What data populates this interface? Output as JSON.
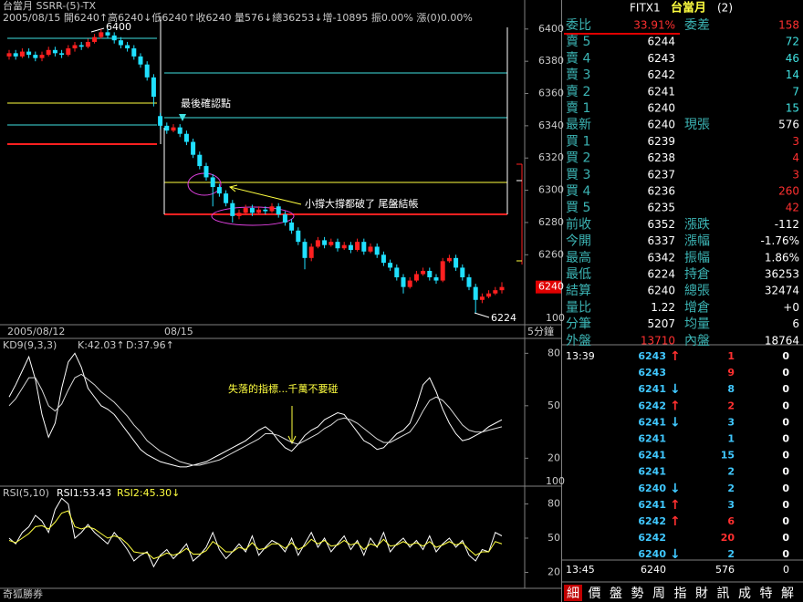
{
  "header": {
    "title": "台當月 SSRR-(5)-TX",
    "ohlc": "2005/08/15 開6240↑高6240↓低6240↑收6240 量576↓總36253↓增-10895 振0.00% 漲(0)0.00%"
  },
  "price_chart": {
    "type": "candlestick",
    "ylim": [
      6220,
      6418
    ],
    "yticks": [
      6400,
      6380,
      6360,
      6340,
      6320,
      6300,
      6280,
      6260
    ],
    "scale_label": "100",
    "last": 6240,
    "candles": [
      [
        6383,
        6387,
        6381,
        6385
      ],
      [
        6385,
        6387,
        6381,
        6383
      ],
      [
        6383,
        6388,
        6382,
        6386
      ],
      [
        6386,
        6388,
        6382,
        6384
      ],
      [
        6384,
        6386,
        6380,
        6382
      ],
      [
        6382,
        6386,
        6380,
        6384
      ],
      [
        6384,
        6389,
        6383,
        6387
      ],
      [
        6387,
        6389,
        6383,
        6385
      ],
      [
        6385,
        6387,
        6382,
        6384
      ],
      [
        6384,
        6390,
        6383,
        6388
      ],
      [
        6388,
        6392,
        6386,
        6390
      ],
      [
        6390,
        6392,
        6387,
        6389
      ],
      [
        6389,
        6394,
        6388,
        6392
      ],
      [
        6392,
        6397,
        6391,
        6395
      ],
      [
        6395,
        6400,
        6394,
        6398
      ],
      [
        6398,
        6400,
        6394,
        6396
      ],
      [
        6396,
        6398,
        6391,
        6393
      ],
      [
        6393,
        6395,
        6388,
        6390
      ],
      [
        6390,
        6392,
        6386,
        6388
      ],
      [
        6388,
        6390,
        6381,
        6383
      ],
      [
        6383,
        6385,
        6376,
        6378
      ],
      [
        6378,
        6380,
        6368,
        6370
      ],
      [
        6370,
        6372,
        6352,
        6358
      ],
      [
        6346,
        6348,
        6338,
        6340
      ],
      [
        6340,
        6342,
        6335,
        6337
      ],
      [
        6337,
        6341,
        6336,
        6339
      ],
      [
        6339,
        6341,
        6333,
        6335
      ],
      [
        6335,
        6337,
        6328,
        6330
      ],
      [
        6330,
        6332,
        6320,
        6322
      ],
      [
        6322,
        6324,
        6313,
        6315
      ],
      [
        6315,
        6317,
        6306,
        6308
      ],
      [
        6308,
        6310,
        6290,
        6302
      ],
      [
        6302,
        6304,
        6296,
        6298
      ],
      [
        6298,
        6300,
        6290,
        6292
      ],
      [
        6292,
        6294,
        6280,
        6284
      ],
      [
        6284,
        6288,
        6282,
        6286
      ],
      [
        6286,
        6291,
        6285,
        6289
      ],
      [
        6289,
        6291,
        6284,
        6286
      ],
      [
        6286,
        6290,
        6285,
        6288
      ],
      [
        6288,
        6290,
        6285,
        6287
      ],
      [
        6287,
        6292,
        6286,
        6290
      ],
      [
        6290,
        6292,
        6283,
        6285
      ],
      [
        6285,
        6287,
        6278,
        6280
      ],
      [
        6280,
        6282,
        6273,
        6275
      ],
      [
        6275,
        6277,
        6266,
        6268
      ],
      [
        6268,
        6270,
        6251,
        6258
      ],
      [
        6258,
        6267,
        6256,
        6265
      ],
      [
        6265,
        6271,
        6264,
        6269
      ],
      [
        6269,
        6271,
        6264,
        6266
      ],
      [
        6266,
        6270,
        6265,
        6268
      ],
      [
        6268,
        6270,
        6262,
        6264
      ],
      [
        6264,
        6268,
        6263,
        6266
      ],
      [
        6266,
        6268,
        6261,
        6263
      ],
      [
        6263,
        6270,
        6262,
        6268
      ],
      [
        6268,
        6270,
        6260,
        6262
      ],
      [
        6262,
        6267,
        6261,
        6265
      ],
      [
        6265,
        6267,
        6258,
        6260
      ],
      [
        6260,
        6262,
        6253,
        6255
      ],
      [
        6255,
        6257,
        6250,
        6252
      ],
      [
        6252,
        6254,
        6244,
        6246
      ],
      [
        6246,
        6248,
        6236,
        6240
      ],
      [
        6240,
        6246,
        6239,
        6244
      ],
      [
        6244,
        6250,
        6243,
        6248
      ],
      [
        6248,
        6252,
        6247,
        6250
      ],
      [
        6250,
        6252,
        6244,
        6246
      ],
      [
        6246,
        6248,
        6242,
        6244
      ],
      [
        6244,
        6258,
        6243,
        6256
      ],
      [
        6256,
        6260,
        6255,
        6258
      ],
      [
        6258,
        6260,
        6250,
        6252
      ],
      [
        6252,
        6254,
        6244,
        6246
      ],
      [
        6246,
        6248,
        6238,
        6240
      ],
      [
        6240,
        6242,
        6224,
        6232
      ],
      [
        6232,
        6236,
        6230,
        6234
      ],
      [
        6234,
        6238,
        6233,
        6236
      ],
      [
        6236,
        6240,
        6235,
        6238
      ],
      [
        6238,
        6243,
        6236,
        6240
      ]
    ],
    "annotations": {
      "high": "6400",
      "low": "6224",
      "confirm": "最後確認點",
      "broken": "小撐大撐都破了 尾盤結帳"
    }
  },
  "date_axis": {
    "left": "2005/08/12",
    "day": "08/15",
    "period": "5分鐘"
  },
  "kd_chart": {
    "type": "line",
    "label": "KD9(9,3,3)",
    "k_label": "K:42.03↑",
    "d_label": "D:37.96↑",
    "ylim": [
      4,
      88
    ],
    "yticks": [
      80,
      50,
      20
    ],
    "scale_label": "100",
    "annotation": "失落的指標...千萬不要碰",
    "series": [
      {
        "color": "#ffffff",
        "values": [
          55,
          62,
          70,
          78,
          65,
          45,
          32,
          40,
          60,
          75,
          80,
          72,
          60,
          55,
          50,
          48,
          45,
          40,
          35,
          30,
          25,
          22,
          20,
          18,
          17,
          16,
          15,
          15,
          16,
          17,
          18,
          20,
          22,
          24,
          26,
          28,
          30,
          33,
          36,
          38,
          35,
          30,
          26,
          24,
          28,
          33,
          36,
          38,
          42,
          44,
          46,
          45,
          40,
          35,
          30,
          28,
          25,
          26,
          30,
          34,
          36,
          40,
          50,
          62,
          66,
          58,
          48,
          40,
          34,
          30,
          31,
          33,
          35,
          38,
          40,
          42
        ]
      },
      {
        "color": "#d8d8d8",
        "values": [
          50,
          54,
          60,
          66,
          66,
          59,
          50,
          47,
          51,
          59,
          66,
          68,
          65,
          62,
          58,
          55,
          52,
          48,
          44,
          39,
          35,
          30,
          27,
          24,
          22,
          20,
          18,
          17,
          16,
          16,
          17,
          18,
          19,
          21,
          23,
          25,
          27,
          29,
          31,
          34,
          34,
          33,
          31,
          29,
          28,
          30,
          32,
          34,
          37,
          39,
          42,
          43,
          42,
          40,
          37,
          34,
          31,
          29,
          29,
          31,
          33,
          35,
          40,
          47,
          53,
          55,
          53,
          49,
          44,
          39,
          36,
          35,
          35,
          36,
          37,
          38
        ]
      }
    ]
  },
  "rsi_chart": {
    "type": "line",
    "label": "RSI(5,10)",
    "rsi1_label": "RSI1:53.43",
    "rsi2_label": "RSI2:45.30↓",
    "ylim": [
      6,
      94
    ],
    "yticks": [
      80,
      50,
      20
    ],
    "series": [
      {
        "color": "#ffffff",
        "values": [
          50,
          45,
          55,
          60,
          70,
          65,
          55,
          75,
          85,
          80,
          50,
          55,
          62,
          55,
          50,
          45,
          55,
          48,
          40,
          30,
          35,
          38,
          25,
          35,
          40,
          32,
          38,
          45,
          30,
          35,
          42,
          55,
          40,
          32,
          38,
          45,
          38,
          52,
          35,
          42,
          48,
          45,
          38,
          50,
          35,
          45,
          55,
          42,
          50,
          38,
          45,
          52,
          40,
          48,
          35,
          50,
          42,
          55,
          38,
          45,
          50,
          42,
          48,
          40,
          52,
          38,
          45,
          50,
          42,
          48,
          35,
          30,
          40,
          38,
          55,
          52
        ]
      },
      {
        "color": "#ffff40",
        "values": [
          48,
          46,
          50,
          54,
          60,
          61,
          58,
          64,
          72,
          74,
          60,
          58,
          60,
          58,
          54,
          50,
          52,
          50,
          45,
          38,
          37,
          37,
          32,
          34,
          37,
          35,
          37,
          41,
          36,
          36,
          39,
          47,
          43,
          38,
          38,
          42,
          40,
          46,
          40,
          41,
          45,
          45,
          41,
          46,
          40,
          43,
          49,
          45,
          48,
          43,
          44,
          48,
          44,
          46,
          40,
          45,
          43,
          49,
          43,
          44,
          47,
          44,
          46,
          43,
          47,
          42,
          44,
          47,
          44,
          46,
          40,
          35,
          38,
          38,
          47,
          45
        ]
      }
    ]
  },
  "quote": {
    "symbol": "FITX1",
    "name": "台當月",
    "count": "(2)",
    "rows": [
      [
        "委比",
        "33.91%",
        "委差",
        "158"
      ],
      [
        "賣 5",
        "6244",
        "72"
      ],
      [
        "賣 4",
        "6243",
        "46"
      ],
      [
        "賣 3",
        "6242",
        "14"
      ],
      [
        "賣 2",
        "6241",
        "7"
      ],
      [
        "賣 1",
        "6240",
        "15"
      ],
      [
        "最新",
        "6240",
        "現張",
        "576"
      ],
      [
        "買 1",
        "6239",
        "3"
      ],
      [
        "買 2",
        "6238",
        "4"
      ],
      [
        "買 3",
        "6237",
        "3"
      ],
      [
        "買 4",
        "6236",
        "260"
      ],
      [
        "買 5",
        "6235",
        "42"
      ],
      [
        "前收",
        "6352",
        "漲跌",
        "-112"
      ],
      [
        "今開",
        "6337",
        "漲幅",
        "-1.76%"
      ],
      [
        "最高",
        "6342",
        "振幅",
        "1.86%"
      ],
      [
        "最低",
        "6224",
        "持倉",
        "36253"
      ],
      [
        "結算",
        "6240",
        "總張",
        "32474"
      ],
      [
        "量比",
        "1.22",
        "增倉",
        "+0"
      ],
      [
        "分筆",
        "5207",
        "均量",
        "6"
      ],
      [
        "外盤",
        "13710",
        "內盤",
        "18764"
      ]
    ]
  },
  "ticks": {
    "rows": [
      {
        "time": "13:39",
        "price": "6243",
        "arrow": "↑",
        "volume": "1",
        "flag": "0",
        "color": "#ff3030"
      },
      {
        "price": "6243",
        "volume": "9",
        "flag": "0",
        "color": "#ff3030"
      },
      {
        "price": "6241",
        "arrow": "↓",
        "volume": "8",
        "flag": "0",
        "color": "#40c8ff"
      },
      {
        "price": "6242",
        "arrow": "↑",
        "volume": "2",
        "flag": "0",
        "color": "#ff3030"
      },
      {
        "price": "6241",
        "arrow": "↓",
        "volume": "3",
        "flag": "0",
        "color": "#40c8ff"
      },
      {
        "price": "6241",
        "volume": "1",
        "flag": "0",
        "color": "#40c8ff"
      },
      {
        "price": "6241",
        "volume": "15",
        "flag": "0",
        "color": "#40c8ff"
      },
      {
        "price": "6241",
        "volume": "2",
        "flag": "0",
        "color": "#40c8ff"
      },
      {
        "price": "6240",
        "arrow": "↓",
        "volume": "2",
        "flag": "0",
        "color": "#40c8ff"
      },
      {
        "price": "6241",
        "arrow": "↑",
        "volume": "3",
        "flag": "0",
        "color": "#40c8ff"
      },
      {
        "price": "6242",
        "arrow": "↑",
        "volume": "6",
        "flag": "0",
        "color": "#ff3030"
      },
      {
        "price": "6242",
        "volume": "20",
        "flag": "0",
        "color": "#ff3030"
      },
      {
        "price": "6240",
        "arrow": "↓",
        "volume": "2",
        "flag": "0",
        "color": "#40c8ff"
      }
    ],
    "summary": {
      "time": "13:45",
      "price": "6240",
      "volume": "576",
      "flag": "0"
    }
  },
  "footer": {
    "brand": "奇狐勝券",
    "tabs": [
      "細",
      "價",
      "盤",
      "勢",
      "周",
      "指",
      "財",
      "訊",
      "成",
      "特",
      "解"
    ]
  }
}
